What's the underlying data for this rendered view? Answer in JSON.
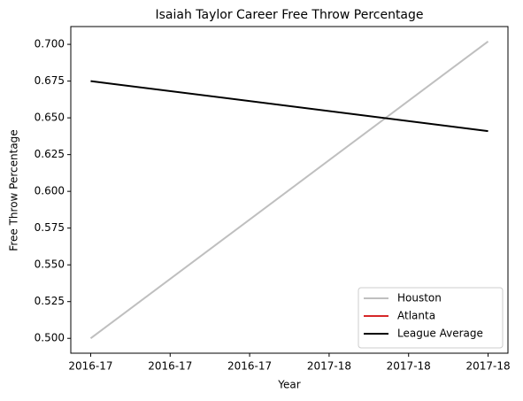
{
  "chart_data": {
    "type": "line",
    "title": "Isaiah Taylor Career Free Throw Percentage",
    "xlabel": "Year",
    "ylabel": "Free Throw Percentage",
    "x": [
      0,
      1
    ],
    "series": [
      {
        "name": "Houston",
        "color": "#bfbfbf",
        "values": [
          0.5,
          0.702
        ]
      },
      {
        "name": "Atlanta",
        "color": "#d62728",
        "values": [
          null,
          null
        ]
      },
      {
        "name": "League Average",
        "color": "#000000",
        "values": [
          0.675,
          0.641
        ]
      }
    ],
    "xlim": [
      -0.05,
      1.05
    ],
    "xticks": [
      {
        "value": 0,
        "label": "2016-17"
      },
      {
        "value": 0.2,
        "label": "2016-17"
      },
      {
        "value": 0.4,
        "label": "2016-17"
      },
      {
        "value": 0.6,
        "label": "2017-18"
      },
      {
        "value": 0.8,
        "label": "2017-18"
      },
      {
        "value": 1,
        "label": "2017-18"
      }
    ],
    "ylim": [
      0.4899,
      0.7121
    ],
    "yticks": [
      {
        "value": 0.5,
        "label": "0.500"
      },
      {
        "value": 0.525,
        "label": "0.525"
      },
      {
        "value": 0.55,
        "label": "0.550"
      },
      {
        "value": 0.575,
        "label": "0.575"
      },
      {
        "value": 0.6,
        "label": "0.600"
      },
      {
        "value": 0.625,
        "label": "0.625"
      },
      {
        "value": 0.65,
        "label": "0.650"
      },
      {
        "value": 0.675,
        "label": "0.675"
      },
      {
        "value": 0.7,
        "label": "0.700"
      }
    ],
    "legend": "lower right",
    "grid": false
  }
}
